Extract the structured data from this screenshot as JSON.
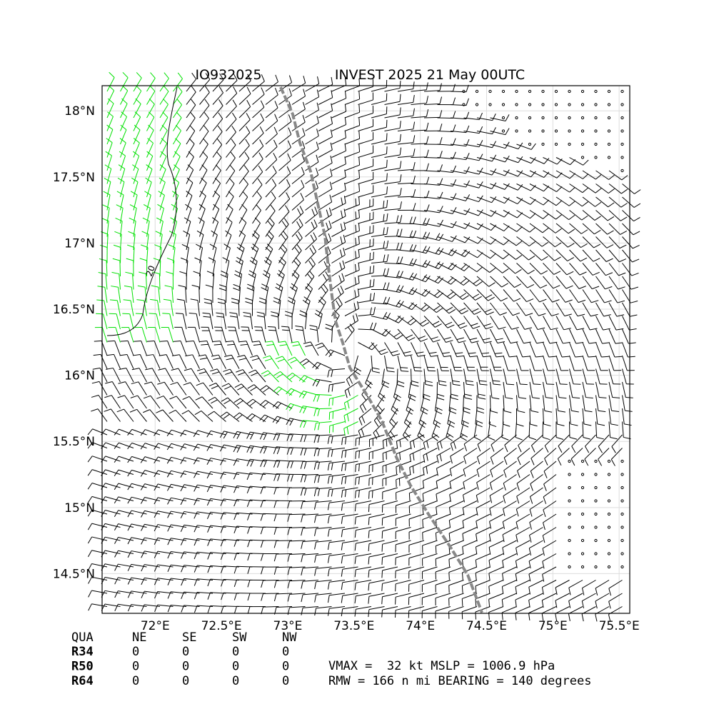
{
  "header": {
    "left": "IO932025",
    "right": "INVEST 2025 21 May 00UTC"
  },
  "map": {
    "xlim": [
      71.6,
      75.58
    ],
    "ylim": [
      14.2,
      18.19
    ],
    "xticks": [
      {
        "value": 72,
        "label": "72°E"
      },
      {
        "value": 72.5,
        "label": "72.5°E"
      },
      {
        "value": 73,
        "label": "73°E"
      },
      {
        "value": 73.5,
        "label": "73.5°E"
      },
      {
        "value": 74,
        "label": "74°E"
      },
      {
        "value": 74.5,
        "label": "74.5°E"
      },
      {
        "value": 75,
        "label": "75°E"
      },
      {
        "value": 75.5,
        "label": "75.5°E"
      }
    ],
    "yticks": [
      {
        "value": 14.5,
        "label": "14.5°N"
      },
      {
        "value": 15,
        "label": "15°N"
      },
      {
        "value": 15.5,
        "label": "15.5°N"
      },
      {
        "value": 16,
        "label": "16°N"
      },
      {
        "value": 16.5,
        "label": "16.5°N"
      },
      {
        "value": 17,
        "label": "17°N"
      },
      {
        "value": 17.5,
        "label": "17.5°N"
      },
      {
        "value": 18,
        "label": "18°N"
      }
    ],
    "contour_label": "20"
  },
  "table": {
    "header": [
      "QUA",
      "NE",
      "SE",
      "SW",
      "NW"
    ],
    "rows": [
      [
        "R34",
        "0",
        "0",
        "0",
        "0"
      ],
      [
        "R50",
        "0",
        "0",
        "0",
        "0"
      ],
      [
        "R64",
        "0",
        "0",
        "0",
        "0"
      ]
    ]
  },
  "info": [
    "VMAX =  32 kt MSLP = 1006.9 hPa",
    "RMW = 166 n mi BEARING = 140 degrees"
  ]
}
